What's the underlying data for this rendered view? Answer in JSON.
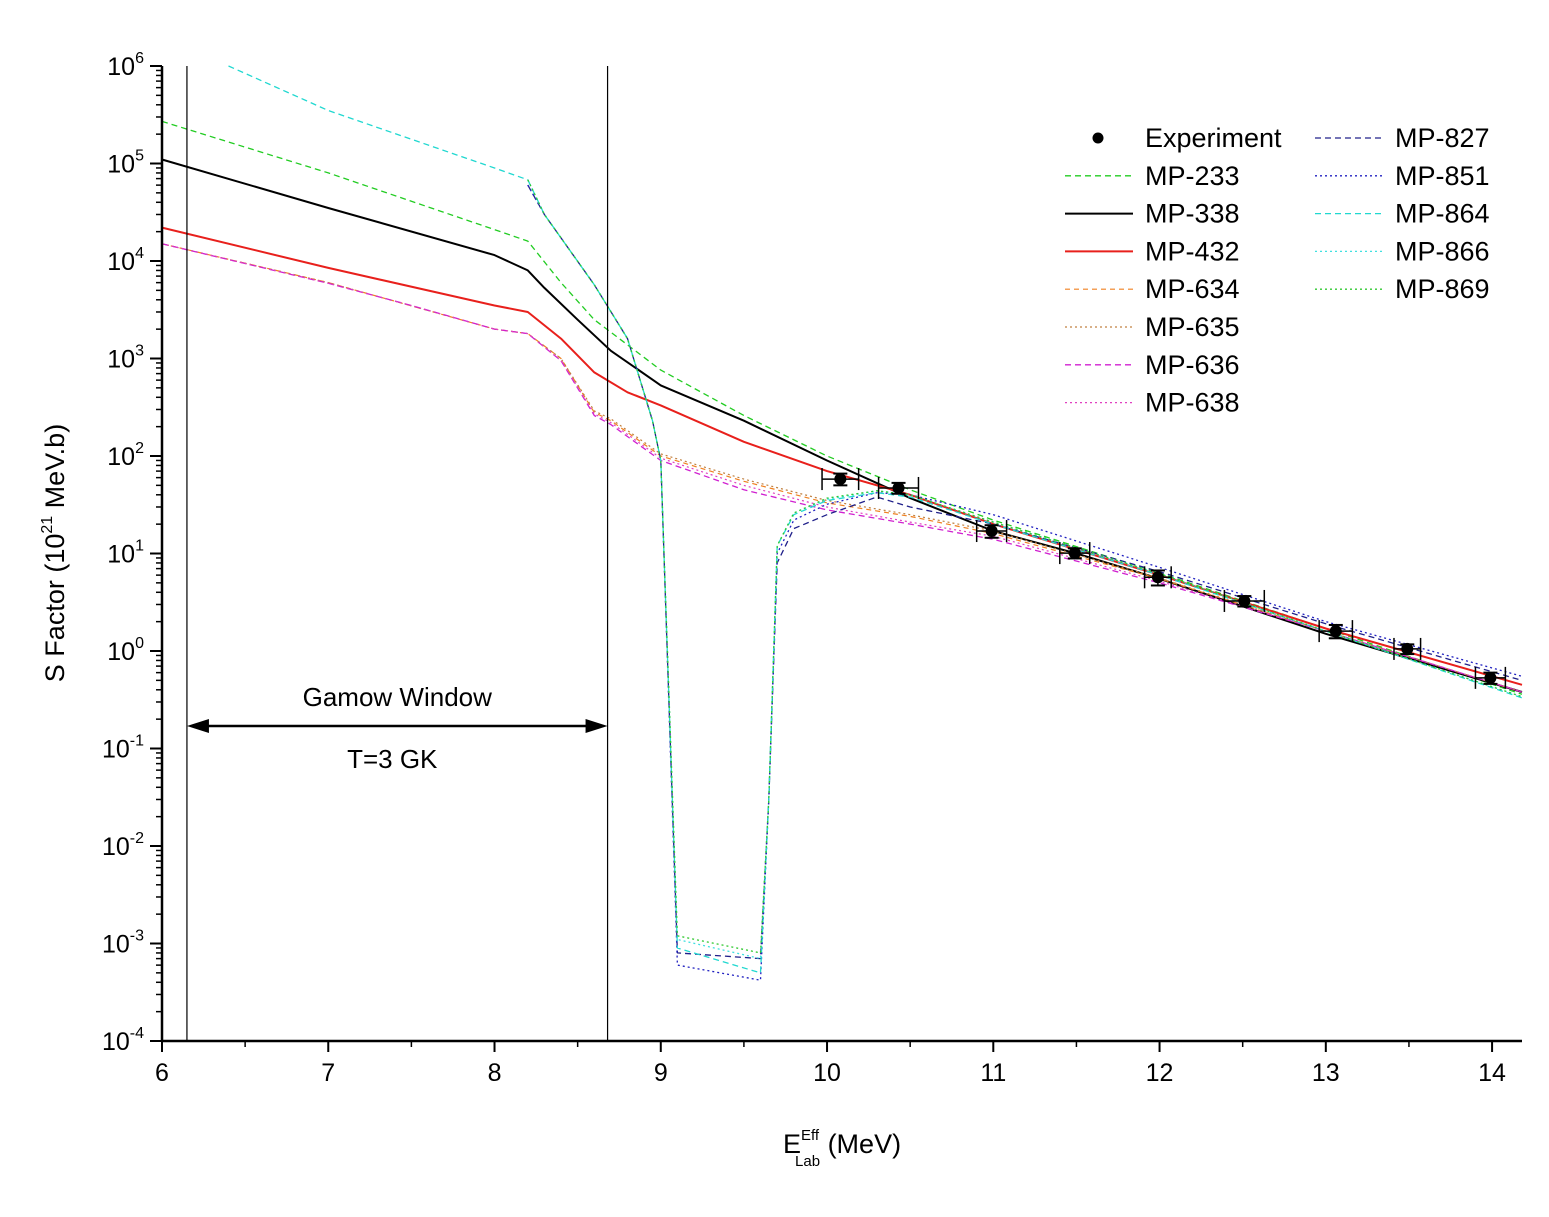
{
  "chart_data": {
    "type": "line",
    "title": "",
    "xlabel": {
      "main": "E",
      "sup": "Eff",
      "sub": "Lab",
      "unit": " (MeV)"
    },
    "ylabel": {
      "pre": "S Factor (10",
      "sup": "21",
      "post": " MeV.b)"
    },
    "xlim": [
      6,
      14.18
    ],
    "ylim": [
      0.0001,
      1000000
    ],
    "yscale": "log",
    "x_ticks": [
      6,
      7,
      8,
      9,
      10,
      11,
      12,
      13,
      14
    ],
    "y_tick_exponents": [
      -4,
      -3,
      -2,
      -1,
      0,
      1,
      2,
      3,
      4,
      5,
      6
    ],
    "grid": false,
    "legend_placement": "top-right",
    "annotations": {
      "window_label": "Gamow Window",
      "temperature_label": "T=3 GK",
      "window_edges": [
        6.15,
        8.68
      ],
      "arrow_level": 0.17
    },
    "experiment": {
      "name": "Experiment",
      "x": [
        10.08,
        10.43,
        10.99,
        11.49,
        11.99,
        12.51,
        13.06,
        13.49,
        13.99
      ],
      "y": [
        58,
        47,
        17,
        10.1,
        5.7,
        3.26,
        1.6,
        1.05,
        0.53
      ],
      "xerr": [
        0.11,
        0.12,
        0.09,
        0.09,
        0.08,
        0.12,
        0.1,
        0.08,
        0.09
      ],
      "yerr": [
        8,
        6,
        2.5,
        1.2,
        1.0,
        0.4,
        0.25,
        0.12,
        0.07
      ]
    },
    "series": [
      {
        "name": "MP-233",
        "color": "#22cc22",
        "dash": "6,4",
        "width": 1.3,
        "x": [
          6,
          7,
          8,
          8.2,
          8.4,
          8.6,
          9,
          9.5,
          10,
          10.5,
          11,
          12,
          13,
          14.18
        ],
        "y": [
          270000,
          80000,
          21000,
          16000,
          6000,
          2500,
          760,
          260,
          100,
          45,
          22,
          6.3,
          1.7,
          0.36
        ]
      },
      {
        "name": "MP-338",
        "color": "#000000",
        "dash": "",
        "width": 2,
        "x": [
          6,
          7,
          8,
          8.2,
          8.3,
          8.5,
          8.7,
          9,
          9.5,
          10,
          10.5,
          11,
          11.5,
          12,
          13,
          14.18
        ],
        "y": [
          110000,
          35000,
          11500,
          8000,
          5300,
          2500,
          1200,
          530,
          230,
          90,
          37,
          17,
          10,
          5.5,
          1.5,
          0.38
        ]
      },
      {
        "name": "MP-432",
        "color": "#e8201c",
        "dash": "",
        "width": 2,
        "x": [
          6,
          7,
          8,
          8.2,
          8.4,
          8.6,
          8.8,
          9,
          9.5,
          10,
          10.5,
          11,
          12,
          13,
          14.18
        ],
        "y": [
          22000,
          8500,
          3500,
          3000,
          1600,
          720,
          450,
          330,
          140,
          70,
          40,
          20,
          6,
          1.7,
          0.45
        ]
      },
      {
        "name": "MP-634",
        "color": "#f08020",
        "dash": "5,4",
        "width": 1.2,
        "x": [
          6,
          7,
          8,
          8.2,
          8.4,
          8.6,
          8.7,
          9,
          9.5,
          10,
          10.5,
          11,
          12,
          13,
          14.18
        ],
        "y": [
          15000,
          6000,
          2000,
          1800,
          1000,
          280,
          230,
          100,
          55,
          33,
          24,
          16,
          5.5,
          1.6,
          0.38
        ]
      },
      {
        "name": "MP-635",
        "color": "#c08040",
        "dash": "2,3",
        "width": 1.2,
        "x": [
          6,
          7,
          8,
          8.2,
          8.4,
          8.6,
          8.7,
          9,
          9.5,
          10,
          10.5,
          11,
          12,
          13,
          14.18
        ],
        "y": [
          15000,
          6000,
          2000,
          1800,
          1000,
          290,
          240,
          105,
          58,
          35,
          25,
          17,
          5.6,
          1.6,
          0.38
        ]
      },
      {
        "name": "MP-636",
        "color": "#d020d0",
        "dash": "6,4",
        "width": 1.3,
        "x": [
          6,
          7,
          7.5,
          8,
          8.2,
          8.4,
          8.6,
          8.7,
          9,
          9.5,
          10,
          10.5,
          11,
          12,
          13,
          14.18
        ],
        "y": [
          15000,
          5900,
          3500,
          2000,
          1800,
          950,
          260,
          210,
          90,
          45,
          28,
          20,
          14,
          5,
          1.6,
          0.38
        ]
      },
      {
        "name": "MP-638",
        "color": "#e040c0",
        "dash": "2,3",
        "width": 1.2,
        "x": [
          6,
          7,
          7.5,
          8,
          8.2,
          8.4,
          8.6,
          8.7,
          9,
          9.5,
          10,
          10.5,
          11,
          12,
          13,
          14.18
        ],
        "y": [
          15000,
          5900,
          3500,
          2000,
          1800,
          950,
          270,
          220,
          95,
          50,
          30,
          21,
          15,
          5.2,
          1.6,
          0.38
        ]
      },
      {
        "name": "MP-827",
        "color": "#20208a",
        "dash": "6,4",
        "width": 1.3,
        "x": [
          8.2,
          8.3,
          8.6,
          8.8,
          8.95,
          9.0,
          9.1,
          9.6,
          9.65,
          9.7,
          9.8,
          10,
          10.3,
          10.5,
          11,
          12,
          13,
          14.18
        ],
        "y": [
          60000,
          30000,
          5700,
          1600,
          230,
          90,
          0.0008,
          0.0007,
          0.03,
          8,
          18,
          25,
          38,
          30,
          20,
          6.5,
          1.9,
          0.5
        ]
      },
      {
        "name": "MP-851",
        "color": "#2020c0",
        "dash": "2,3",
        "width": 1.3,
        "x": [
          8.2,
          8.3,
          8.6,
          8.8,
          8.95,
          9.0,
          9.1,
          9.6,
          9.65,
          9.7,
          9.8,
          10,
          10.3,
          10.5,
          11,
          12,
          13,
          14.18
        ],
        "y": [
          60000,
          30000,
          5700,
          1600,
          230,
          90,
          0.0006,
          0.00042,
          0.03,
          10,
          22,
          32,
          42,
          40,
          25,
          7.2,
          2,
          0.55
        ]
      },
      {
        "name": "MP-864",
        "color": "#20d8d0",
        "dash": "6,4",
        "width": 1.3,
        "x": [
          6.4,
          7,
          8,
          8.2,
          8.3,
          8.6,
          8.8,
          8.95,
          9.0,
          9.1,
          9.6,
          9.65,
          9.7,
          9.8,
          10,
          10.3,
          10.5,
          11,
          12,
          13,
          14.18
        ],
        "y": [
          1000000,
          350000,
          90000,
          68000,
          30000,
          5700,
          1600,
          230,
          90,
          0.0009,
          0.0005,
          0.03,
          12,
          25,
          35,
          42,
          38,
          20,
          6,
          1.6,
          0.33
        ]
      },
      {
        "name": "MP-866",
        "color": "#40e0e0",
        "dash": "2,3",
        "width": 1.3,
        "x": [
          8.2,
          8.3,
          8.6,
          8.8,
          8.95,
          9.0,
          9.1,
          9.6,
          9.65,
          9.7,
          9.8,
          10,
          10.3,
          10.5,
          11,
          12,
          13,
          14.18
        ],
        "y": [
          68000,
          30000,
          5700,
          1600,
          230,
          90,
          0.0011,
          0.0007,
          0.03,
          12,
          26,
          36,
          44,
          40,
          21,
          6.2,
          1.6,
          0.34
        ]
      },
      {
        "name": "MP-869",
        "color": "#30c830",
        "dash": "2,3",
        "width": 1.3,
        "x": [
          8.2,
          8.3,
          8.6,
          8.8,
          8.95,
          9.0,
          9.1,
          9.6,
          9.65,
          9.7,
          9.8,
          10,
          10.3,
          10.5,
          11,
          12,
          13,
          14.18
        ],
        "y": [
          68000,
          30000,
          5700,
          1600,
          230,
          90,
          0.0012,
          0.0008,
          0.03,
          12,
          26,
          37,
          44,
          40,
          21,
          6.2,
          1.6,
          0.34
        ]
      }
    ]
  }
}
